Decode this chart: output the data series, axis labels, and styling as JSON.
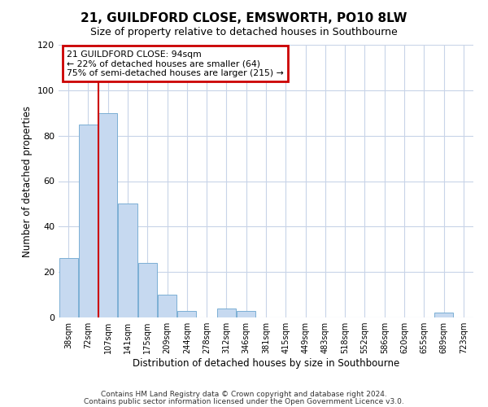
{
  "title": "21, GUILDFORD CLOSE, EMSWORTH, PO10 8LW",
  "subtitle": "Size of property relative to detached houses in Southbourne",
  "xlabel": "Distribution of detached houses by size in Southbourne",
  "ylabel": "Number of detached properties",
  "bar_labels": [
    "38sqm",
    "72sqm",
    "107sqm",
    "141sqm",
    "175sqm",
    "209sqm",
    "244sqm",
    "278sqm",
    "312sqm",
    "346sqm",
    "381sqm",
    "415sqm",
    "449sqm",
    "483sqm",
    "518sqm",
    "552sqm",
    "586sqm",
    "620sqm",
    "655sqm",
    "689sqm",
    "723sqm"
  ],
  "bar_values": [
    26,
    85,
    90,
    50,
    24,
    10,
    3,
    0,
    4,
    3,
    0,
    0,
    0,
    0,
    0,
    0,
    0,
    0,
    0,
    2,
    0
  ],
  "bar_color": "#c6d9f0",
  "bar_edge_color": "#7bafd4",
  "vline_x": 1.5,
  "annotation_line1": "21 GUILDFORD CLOSE: 94sqm",
  "annotation_line2": "← 22% of detached houses are smaller (64)",
  "annotation_line3": "75% of semi-detached houses are larger (215) →",
  "annotation_box_color": "#ffffff",
  "annotation_box_edge_color": "#cc0000",
  "vline_color": "#cc0000",
  "ylim": [
    0,
    120
  ],
  "yticks": [
    0,
    20,
    40,
    60,
    80,
    100,
    120
  ],
  "footnote1": "Contains HM Land Registry data © Crown copyright and database right 2024.",
  "footnote2": "Contains public sector information licensed under the Open Government Licence v3.0.",
  "background_color": "#ffffff",
  "grid_color": "#c8d4e8"
}
